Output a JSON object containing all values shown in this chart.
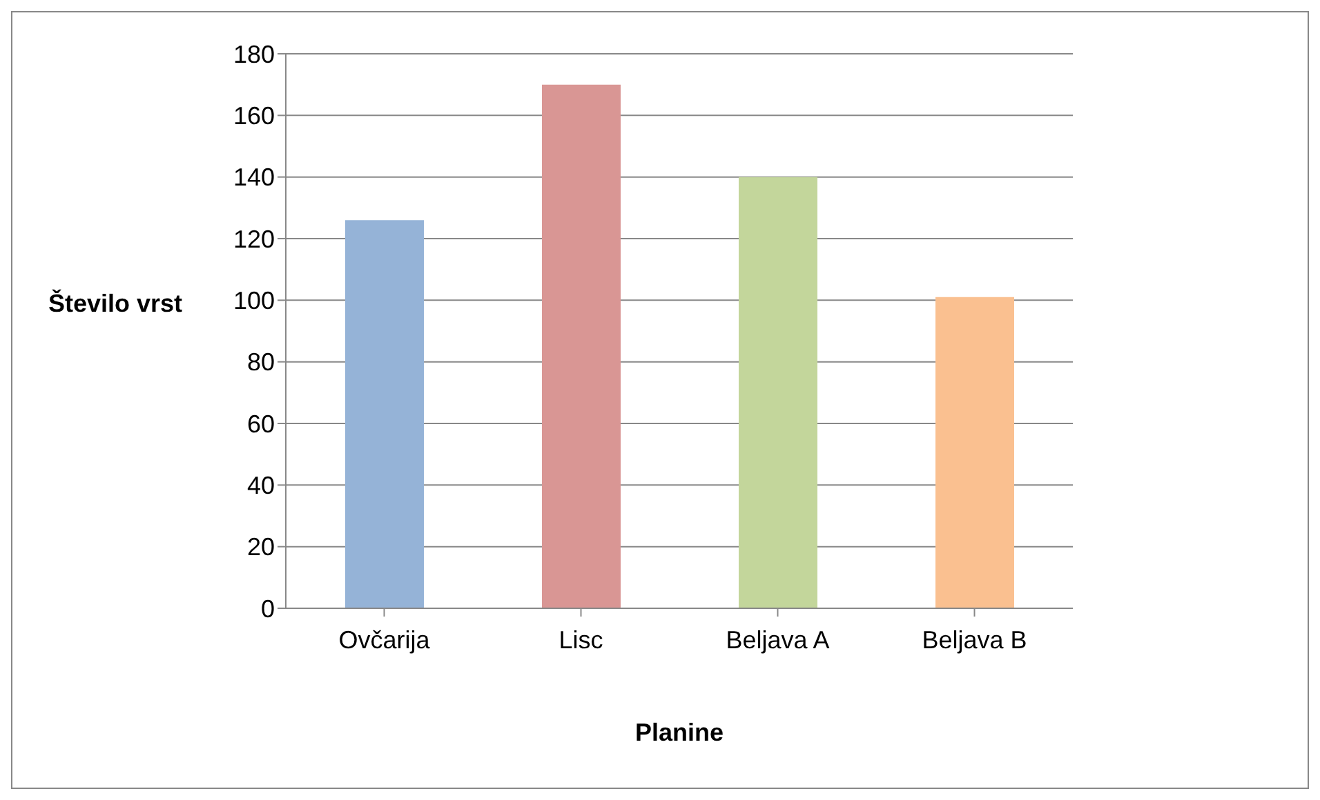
{
  "chart_data": {
    "type": "bar",
    "xlabel": "Planine",
    "ylabel": "Število vrst",
    "categories": [
      "Ovčarija",
      "Lisc",
      "Beljava A",
      "Beljava B"
    ],
    "values": [
      126,
      170,
      140,
      101
    ],
    "colors": [
      "#95b3d7",
      "#d99694",
      "#c3d69b",
      "#fac090"
    ],
    "ylim": [
      0,
      180
    ],
    "yticks": [
      0,
      20,
      40,
      60,
      80,
      100,
      120,
      140,
      160,
      180
    ],
    "grid": "y",
    "legend": false
  }
}
